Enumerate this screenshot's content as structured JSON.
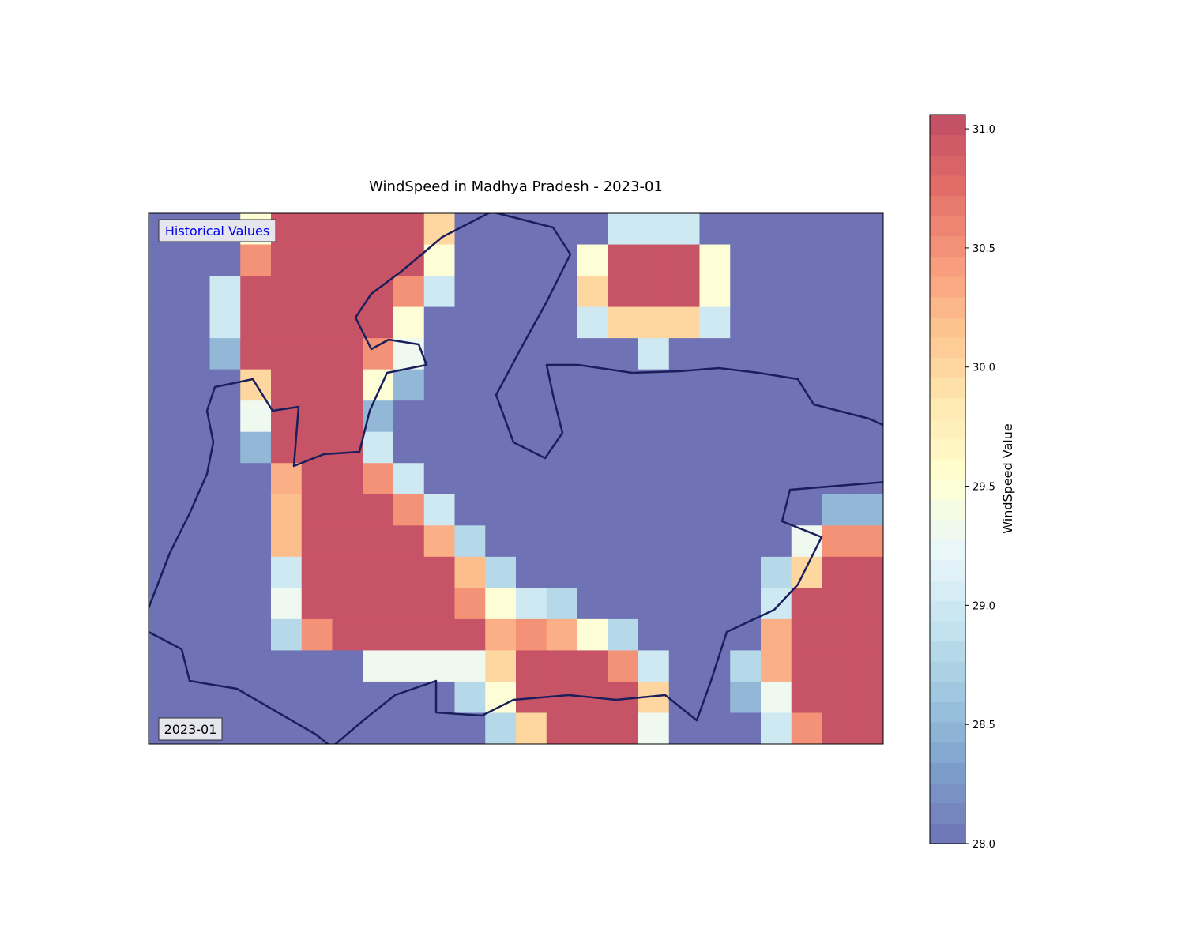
{
  "chart_data": {
    "type": "heatmap",
    "title": "WindSpeed in Madhya Pradesh - 2023-01",
    "annotations": [
      "Historical Values",
      "2023-01"
    ],
    "colorbar_label": "WindSpeed Value",
    "colormap": "RdYlBu_r",
    "zlim": [
      28,
      31.06
    ],
    "zticks": [
      {
        "value": 28,
        "label": "28.0"
      },
      28.5,
      {
        "value": 29,
        "label": "29.0"
      },
      29.5,
      {
        "value": 30,
        "label": "30.0"
      },
      30.5,
      {
        "value": 31,
        "label": "31.0"
      }
    ],
    "values": [
      [
        28,
        28,
        28,
        29.5,
        31,
        31,
        31,
        31,
        31,
        30,
        28,
        28,
        28,
        28,
        28,
        29,
        29,
        29,
        28,
        28,
        28,
        28,
        28,
        28
      ],
      [
        28,
        28,
        28,
        30.5,
        31,
        31,
        31,
        31,
        31,
        29.5,
        28,
        28,
        28,
        28,
        29.5,
        31,
        31,
        31,
        29.5,
        28,
        28,
        28,
        28,
        28
      ],
      [
        28,
        28,
        29,
        31,
        31,
        31,
        31,
        31,
        30.5,
        29,
        28,
        28,
        28,
        28,
        30,
        31,
        31,
        31,
        29.5,
        28,
        28,
        28,
        28,
        28
      ],
      [
        28,
        28,
        29,
        31,
        31,
        31,
        31,
        31,
        29.5,
        28,
        28,
        28,
        28,
        28,
        29,
        30,
        30,
        30,
        29,
        28,
        28,
        28,
        28,
        28
      ],
      [
        28,
        28,
        28.5,
        31,
        31,
        31,
        31,
        30.5,
        29.3,
        28,
        28,
        28,
        28,
        28,
        28,
        28,
        29,
        28,
        28,
        28,
        28,
        28,
        28,
        28
      ],
      [
        28,
        28,
        28,
        30,
        31,
        31,
        31,
        29.5,
        28.5,
        28,
        28,
        28,
        28,
        28,
        28,
        28,
        28,
        28,
        28,
        28,
        28,
        28,
        28,
        28
      ],
      [
        28,
        28,
        28,
        29.3,
        31,
        31,
        31,
        28.5,
        28,
        28,
        28,
        28,
        28,
        28,
        28,
        28,
        28,
        28,
        28,
        28,
        28,
        28,
        28,
        28
      ],
      [
        28,
        28,
        28,
        28.5,
        31,
        31,
        31,
        29,
        28,
        28,
        28,
        28,
        28,
        28,
        28,
        28,
        28,
        28,
        28,
        28,
        28,
        28,
        28,
        28
      ],
      [
        28,
        28,
        28,
        28,
        30.3,
        31,
        31,
        30.5,
        29,
        28,
        28,
        28,
        28,
        28,
        28,
        28,
        28,
        28,
        28,
        28,
        28,
        28,
        28,
        28
      ],
      [
        28,
        28,
        28,
        28,
        30.2,
        31,
        31,
        31,
        30.5,
        29,
        28,
        28,
        28,
        28,
        28,
        28,
        28,
        28,
        28,
        28,
        28,
        28,
        28.5,
        28.5
      ],
      [
        28,
        28,
        28,
        28,
        30.2,
        31,
        31,
        31,
        31,
        30.3,
        28.8,
        28,
        28,
        28,
        28,
        28,
        28,
        28,
        28,
        28,
        28,
        29.3,
        30.5,
        30.5
      ],
      [
        28,
        28,
        28,
        28,
        29,
        31,
        31,
        31,
        31,
        31,
        30.2,
        28.8,
        28,
        28,
        28,
        28,
        28,
        28,
        28,
        28,
        28.8,
        30,
        31,
        31
      ],
      [
        28,
        28,
        28,
        28,
        29.3,
        31,
        31,
        31,
        31,
        31,
        30.5,
        29.5,
        29,
        28.8,
        28,
        28,
        28,
        28,
        28,
        28,
        29,
        31,
        31,
        31
      ],
      [
        28,
        28,
        28,
        28,
        28.8,
        30.5,
        31,
        31,
        31,
        31,
        31,
        30.3,
        30.5,
        30.3,
        29.5,
        28.8,
        28,
        28,
        28,
        28,
        30.3,
        31,
        31,
        31
      ],
      [
        28,
        28,
        28,
        28,
        28,
        28,
        28,
        29.3,
        29.3,
        29.3,
        29.3,
        30,
        31,
        31,
        31,
        30.5,
        29,
        28,
        28,
        28.8,
        30.3,
        31,
        31,
        31
      ],
      [
        28,
        28,
        28,
        28,
        28,
        28,
        28,
        28,
        28,
        28,
        28.8,
        29.5,
        31,
        31,
        31,
        31,
        30,
        28,
        28,
        28.5,
        29.3,
        31,
        31,
        31
      ],
      [
        28,
        28,
        28,
        28,
        28,
        28,
        28,
        28,
        28,
        28,
        28,
        28.8,
        30,
        31,
        31,
        31,
        29.3,
        28,
        28,
        28,
        29,
        30.5,
        31,
        31
      ]
    ]
  }
}
